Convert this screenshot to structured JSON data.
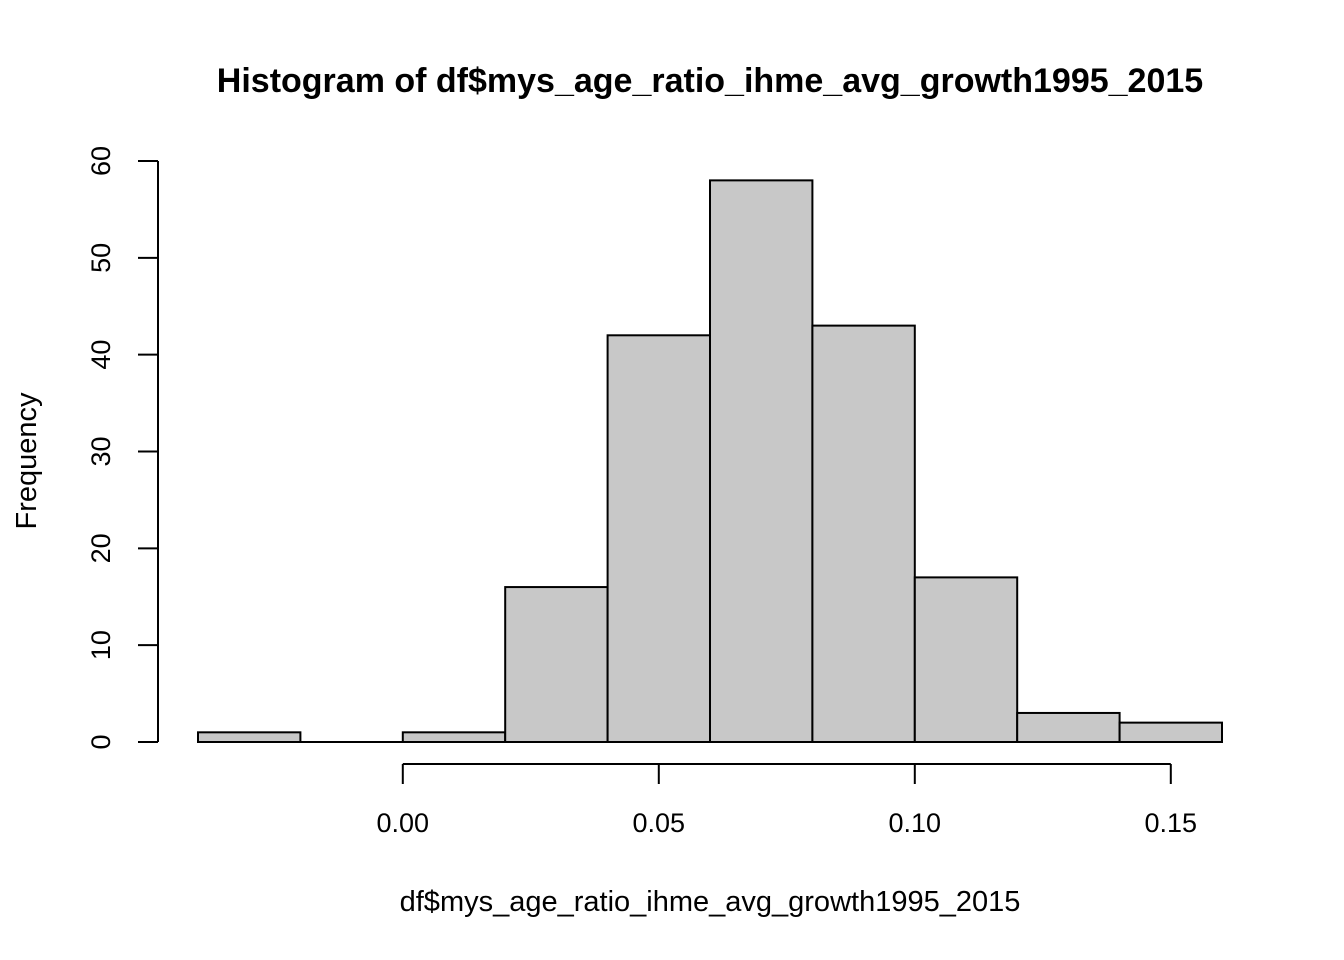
{
  "chart_data": {
    "type": "bar",
    "title": "Histogram of df$mys_age_ratio_ihme_avg_growth1995_2015",
    "xlabel": "df$mys_age_ratio_ihme_avg_growth1995_2015",
    "ylabel": "Frequency",
    "bin_edges": [
      -0.04,
      -0.02,
      0.0,
      0.02,
      0.04,
      0.06,
      0.08,
      0.1,
      0.12,
      0.14,
      0.16
    ],
    "values": [
      1,
      0,
      1,
      16,
      42,
      58,
      43,
      17,
      3,
      2
    ],
    "xlim": [
      -0.04,
      0.16
    ],
    "ylim": [
      0,
      60
    ],
    "x_ticks": [
      0.0,
      0.05,
      0.1,
      0.15
    ],
    "x_tick_labels": [
      "0.00",
      "0.05",
      "0.10",
      "0.15"
    ],
    "y_ticks": [
      0,
      10,
      20,
      30,
      40,
      50,
      60
    ],
    "y_tick_labels": [
      "0",
      "10",
      "20",
      "30",
      "40",
      "50",
      "60"
    ],
    "bar_color": "#c8c8c8",
    "grid": false,
    "legend": "none"
  }
}
